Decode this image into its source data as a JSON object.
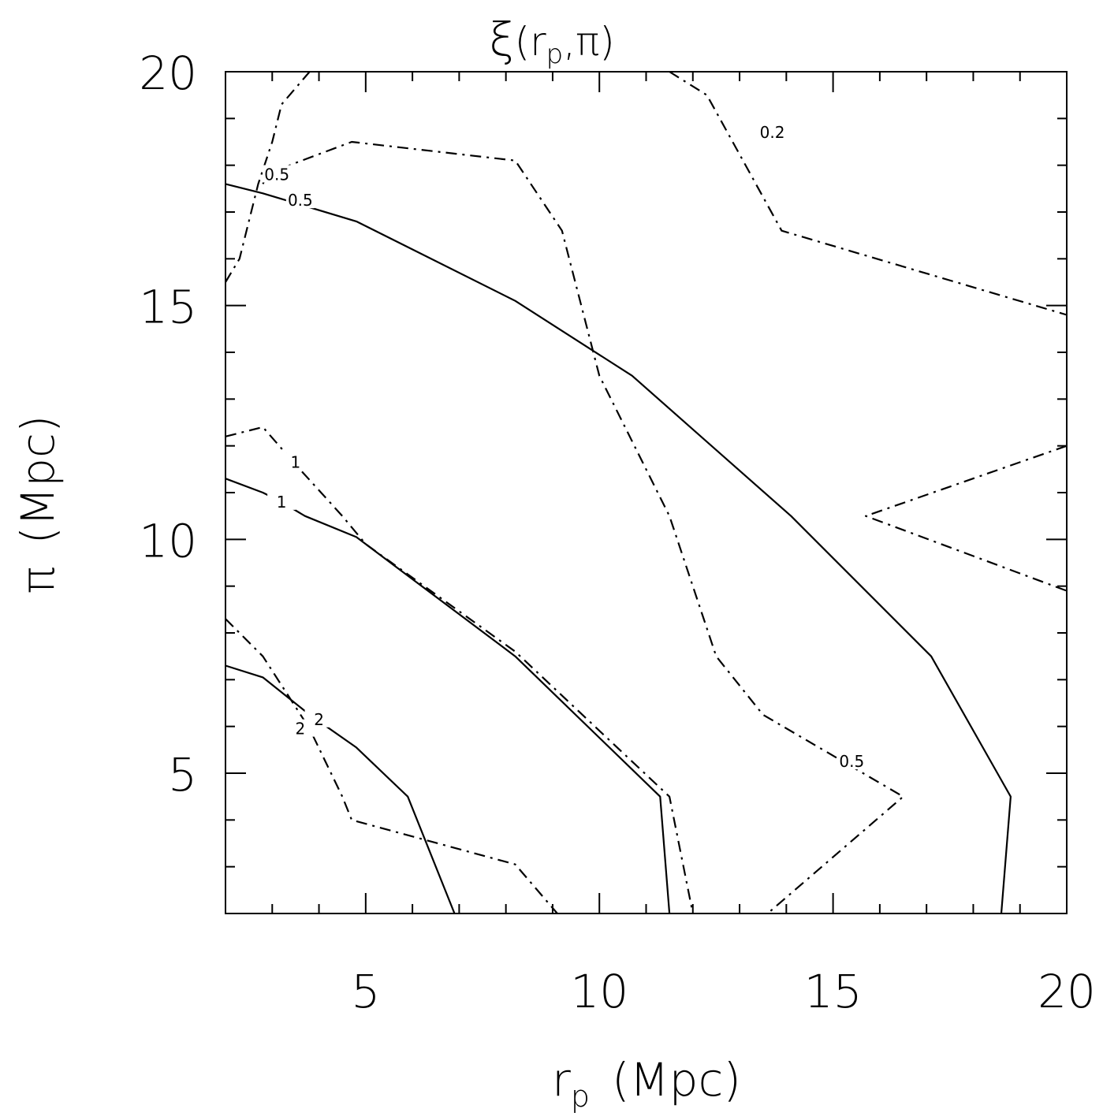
{
  "chart_data": {
    "type": "contour",
    "title": "ξ(r_p,π)",
    "title_parts": {
      "xi": "ξ",
      "open": "(",
      "rp": "r",
      "rp_sub": "p",
      "comma": ",",
      "pi": "π",
      "close": ")"
    },
    "xlabel": {
      "main": "r",
      "sub": "p",
      "units": "(Mpc)"
    },
    "ylabel": {
      "main": "π",
      "units": "(Mpc)"
    },
    "xlim": [
      2,
      20
    ],
    "ylim": [
      2,
      20
    ],
    "xticks": [
      5,
      10,
      15,
      20
    ],
    "yticks": [
      5,
      10,
      15,
      20
    ],
    "xtick_labels": [
      "5",
      "10",
      "15",
      "20"
    ],
    "ytick_labels": [
      "5",
      "10",
      "15",
      "20"
    ],
    "series": [
      {
        "name": "solid",
        "style": "solid",
        "contours": [
          {
            "level": "0.5",
            "points": [
              [
                2.0,
                17.6
              ],
              [
                2.8,
                17.4
              ],
              [
                3.3,
                17.25
              ],
              [
                4.8,
                16.8
              ],
              [
                8.2,
                15.1
              ],
              [
                10.7,
                13.5
              ],
              [
                14.1,
                10.5
              ],
              [
                17.1,
                7.5
              ],
              [
                18.8,
                4.5
              ],
              [
                18.6,
                2.0
              ]
            ]
          },
          {
            "level": "1",
            "points": [
              [
                2.0,
                11.3
              ],
              [
                2.8,
                11.0
              ],
              [
                3.2,
                10.8
              ],
              [
                3.7,
                10.5
              ],
              [
                4.8,
                10.05
              ],
              [
                8.2,
                7.5
              ],
              [
                11.3,
                4.5
              ],
              [
                11.5,
                2.0
              ]
            ]
          },
          {
            "level": "2",
            "points": [
              [
                2.0,
                7.3
              ],
              [
                2.8,
                7.05
              ],
              [
                3.8,
                6.25
              ],
              [
                4.8,
                5.55
              ],
              [
                5.9,
                4.5
              ],
              [
                6.9,
                2.0
              ]
            ]
          }
        ]
      },
      {
        "name": "dash-dot",
        "style": "dashdot",
        "contours": [
          {
            "level": "",
            "points": [
              [
                2.0,
                15.5
              ],
              [
                2.3,
                16.0
              ],
              [
                2.7,
                17.6
              ],
              [
                3.0,
                18.5
              ],
              [
                3.2,
                19.3
              ],
              [
                3.8,
                20.0
              ]
            ]
          },
          {
            "level": "0.5",
            "points": [
              [
                2.8,
                17.6
              ],
              [
                2.9,
                17.8
              ],
              [
                3.5,
                18.05
              ],
              [
                4.7,
                18.5
              ],
              [
                8.2,
                18.1
              ],
              [
                9.2,
                16.6
              ],
              [
                10.0,
                13.5
              ],
              [
                11.5,
                10.5
              ],
              [
                12.5,
                7.5
              ],
              [
                13.5,
                6.25
              ],
              [
                16.5,
                4.5
              ],
              [
                13.6,
                2.0
              ]
            ]
          },
          {
            "level": "0.2",
            "points": [
              [
                11.5,
                20.0
              ],
              [
                12.3,
                19.5
              ],
              [
                13.9,
                16.6
              ],
              [
                20.0,
                14.8
              ]
            ]
          },
          {
            "level": "1",
            "points": [
              [
                2.0,
                12.2
              ],
              [
                2.8,
                12.4
              ],
              [
                3.5,
                11.6
              ],
              [
                4.5,
                10.5
              ],
              [
                5.0,
                9.9
              ],
              [
                8.2,
                7.6
              ],
              [
                11.5,
                4.5
              ],
              [
                12.0,
                2.0
              ]
            ]
          },
          {
            "level": "",
            "points": [
              [
                20.0,
                12.0
              ],
              [
                15.7,
                10.5
              ],
              [
                20.0,
                8.9
              ]
            ]
          },
          {
            "level": "2",
            "points": [
              [
                2.0,
                8.3
              ],
              [
                2.8,
                7.5
              ],
              [
                3.8,
                5.95
              ],
              [
                4.5,
                4.5
              ],
              [
                4.7,
                4.0
              ],
              [
                8.2,
                3.05
              ],
              [
                9.1,
                2.0
              ]
            ]
          }
        ]
      }
    ],
    "contour_labels": [
      {
        "text": "0.5",
        "at": [
          3.1,
          17.8
        ],
        "style": "dashdot"
      },
      {
        "text": "0.5",
        "at": [
          3.6,
          17.25
        ],
        "style": "solid"
      },
      {
        "text": "0.2",
        "at": [
          13.7,
          18.7
        ],
        "style": "dashdot"
      },
      {
        "text": "1",
        "at": [
          3.5,
          11.65
        ],
        "style": "dashdot"
      },
      {
        "text": "1",
        "at": [
          3.2,
          10.8
        ],
        "style": "solid"
      },
      {
        "text": "2",
        "at": [
          4.0,
          6.15
        ],
        "style": "solid"
      },
      {
        "text": "2",
        "at": [
          3.6,
          5.95
        ],
        "style": "dashdot"
      },
      {
        "text": "0.5",
        "at": [
          15.4,
          5.25
        ],
        "style": "dashdot"
      }
    ]
  }
}
